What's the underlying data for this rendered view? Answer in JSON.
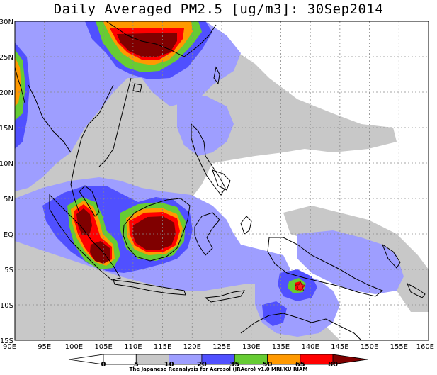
{
  "title": "Daily Averaged PM2.5 [ug/m3]: 30Sep2014",
  "credit": "The Japanese Reanalysis for Aerosol (JRAero) v1.0 MRI/KU RIAM",
  "map": {
    "lon_range": [
      90,
      160
    ],
    "lat_range": [
      -15,
      30
    ],
    "lon_labels": [
      "90E",
      "95E",
      "100E",
      "105E",
      "110E",
      "115E",
      "120E",
      "125E",
      "130E",
      "135E",
      "140E",
      "145E",
      "150E",
      "155E",
      "160E"
    ],
    "lat_labels": [
      "30N",
      "25N",
      "20N",
      "15N",
      "10N",
      "5N",
      "EQ",
      "5S",
      "10S",
      "15S"
    ],
    "grid": "dotted",
    "marker_icon": "red-star-icon"
  },
  "colorbar": {
    "levels": [
      "0",
      "5",
      "10",
      "20",
      "35",
      "50",
      "65",
      "80"
    ],
    "colors": [
      "#ffffff",
      "#ffffff",
      "#c8c8c8",
      "#9e9eff",
      "#5050ff",
      "#66cc33",
      "#ff9900",
      "#ff0000",
      "#800000"
    ]
  }
}
